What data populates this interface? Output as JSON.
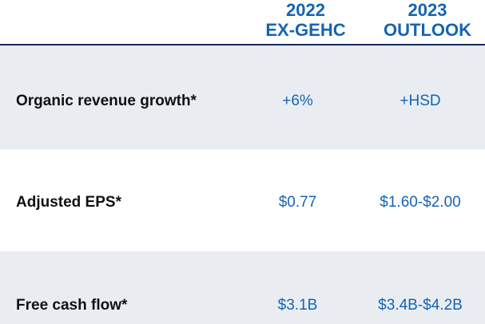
{
  "columns": [
    {
      "line1": "2022",
      "line2": "EX-GEHC"
    },
    {
      "line1": "2023",
      "line2": "OUTLOOK"
    }
  ],
  "rows": [
    {
      "label": "Organic revenue growth*",
      "v2022": "+6%",
      "v2023": "+HSD"
    },
    {
      "label": "Adjusted EPS*",
      "v2022": "$0.77",
      "v2023": "$1.60-$2.00"
    },
    {
      "label": "Free cash flow*",
      "v2022": "$3.1B",
      "v2023": "$3.4B-$4.2B"
    }
  ],
  "colors": {
    "accent": "#1464b4",
    "label": "#111111",
    "row_shade": "#e9edf2",
    "rule": "#1a2a5a"
  }
}
